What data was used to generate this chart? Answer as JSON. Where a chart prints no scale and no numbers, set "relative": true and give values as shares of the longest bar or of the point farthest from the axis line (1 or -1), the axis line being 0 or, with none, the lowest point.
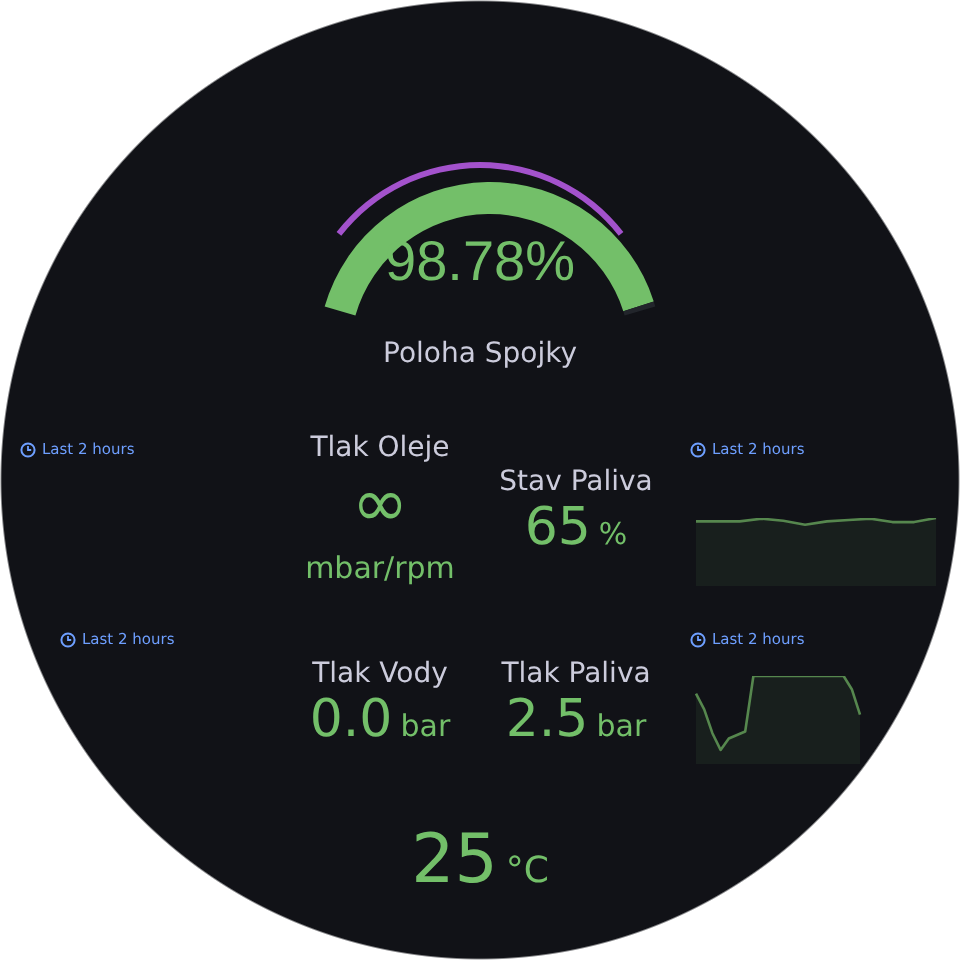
{
  "chart_data": [
    {
      "type": "donut",
      "title": "Poloha Spojky",
      "categories": [
        null,
        null
      ],
      "values": [
        98.78,
        1.22
      ],
      "colors": [
        "#73bf69",
        "#22252b"
      ],
      "annotations": [
        "98.78%"
      ]
    },
    {
      "type": "other",
      "annotations": [
        "Last 2 hours"
      ]
    },
    {
      "type": "other",
      "title": "Tlak Oleje",
      "annotations": [
        "∞",
        "mbar/rpm"
      ]
    },
    {
      "type": "other",
      "title": "Stav Paliva",
      "annotations": [
        "65",
        "%"
      ]
    },
    {
      "type": "area",
      "subtitle": "Last 2 hours",
      "relative": true,
      "categories": [
        null,
        null,
        null,
        null,
        null,
        null,
        null,
        null,
        null,
        null,
        null,
        null
      ],
      "series": [
        {
          "color": "#56874e",
          "values": [
            0.95,
            0.95,
            0.95,
            0.99,
            0.96,
            0.9,
            0.95,
            0.97,
            0.99,
            0.94,
            0.94,
            1
          ]
        }
      ]
    },
    {
      "type": "other",
      "annotations": [
        "Last 2 hours"
      ]
    },
    {
      "type": "other",
      "title": "Tlak Vody",
      "annotations": [
        "0.0",
        "bar"
      ]
    },
    {
      "type": "other",
      "title": "Tlak Paliva",
      "annotations": [
        "2.5",
        "bar"
      ]
    },
    {
      "type": "area",
      "subtitle": "Last 2 hours",
      "relative": true,
      "categories": [
        null,
        null,
        null,
        null,
        null,
        null,
        null,
        null,
        null,
        null,
        null,
        null,
        null,
        null,
        null,
        null,
        null,
        null,
        null,
        null,
        null
      ],
      "series": [
        {
          "color": "#56874e",
          "values": [
            0.8,
            0.62,
            0.35,
            0.16,
            0.29,
            0.33,
            0.37,
            1,
            1,
            1,
            1,
            1,
            1,
            1,
            1,
            1,
            1,
            1,
            1,
            0.85,
            0.56
          ]
        }
      ]
    },
    {
      "type": "other",
      "annotations": [
        "25",
        "°C"
      ]
    }
  ]
}
